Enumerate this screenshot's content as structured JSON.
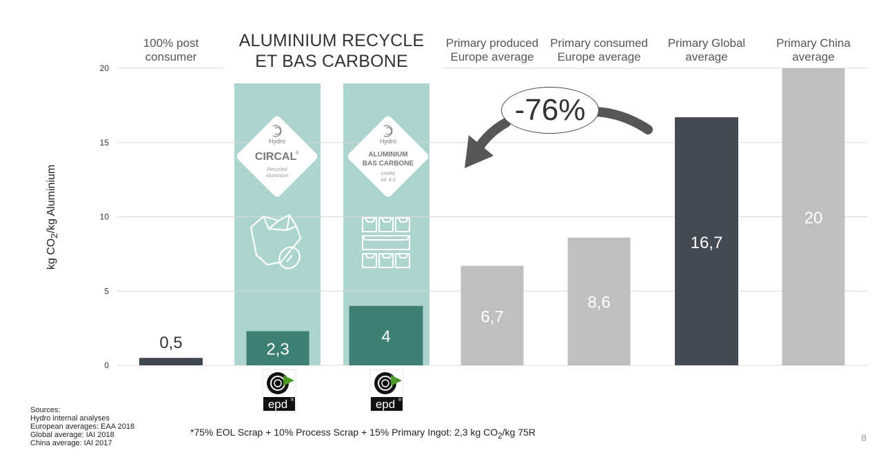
{
  "chart_data": {
    "type": "bar",
    "categories": [
      "100% post consumer",
      "ALUMINIUM RECYCLE ET BAS CARBONE (CIRCAL)",
      "ALUMINIUM RECYCLE ET BAS CARBONE (Bas carbone)",
      "Primary produced Europe average",
      "Primary consumed Europe average",
      "Primary Global average",
      "Primary China average"
    ],
    "values": [
      0.5,
      2.3,
      4,
      6.7,
      8.6,
      16.7,
      20
    ],
    "value_labels": [
      "0,5",
      "2,3",
      "4",
      "6,7",
      "8,6",
      "16,7",
      "20"
    ],
    "bar_colors": [
      "#3f4750",
      "#3e7f75",
      "#3e7f75",
      "#bfbfbf",
      "#bfbfbf",
      "#434a53",
      "#bfbfbf"
    ],
    "ylabel": "kg CO₂/kg Aluminium",
    "ylim": [
      0,
      20
    ],
    "yticks": [
      0,
      5,
      10,
      15,
      20
    ],
    "grid": true,
    "annotation": "-76%"
  },
  "header": {
    "cat1_line1": "100% post",
    "cat1_line2": "consumer",
    "highlight_line1": "ALUMINIUM RECYCLE",
    "highlight_line2": "ET BAS CARBONE",
    "cat4_line1": "Primary produced",
    "cat4_line2": "Europe average",
    "cat5_line1": "Primary consumed",
    "cat5_line2": "Europe average",
    "cat6_line1": "Primary Global",
    "cat6_line2": "average",
    "cat7_line1": "Primary China",
    "cat7_line2": "average"
  },
  "badges": {
    "circal": {
      "brand": "Hydro",
      "name": "CIRCAL",
      "mark": "®",
      "sub1": "Recycled",
      "sub2": "Aluminium"
    },
    "bascarbone": {
      "brand": "Hydro",
      "name1": "ALUMINIUM",
      "name2": "BAS CARBONE",
      "sub1": "certifié",
      "sub2": "inf. 4,0"
    },
    "epd_label": "epd",
    "epd_mark": "®"
  },
  "colors": {
    "highlight_bg": "#acd5d0",
    "grid": "#d9d9d9"
  },
  "sources": {
    "title": "Sources:",
    "line1": "Hydro internal analyses",
    "line2": "European averages: EAA 2018",
    "line3": "Global average: IAI 2018",
    "line4": "China average: IAI 2017"
  },
  "footnote": {
    "pre": "*75% EOL Scrap + 10% Process Scrap + 15% Primary Ingot: 2,3 kg CO",
    "sub": "2",
    "post": "/kg 75R"
  },
  "ylabel_parts": {
    "pre": "kg CO",
    "sub": "2",
    "post": "/kg Aluminium"
  },
  "page_number": "8"
}
